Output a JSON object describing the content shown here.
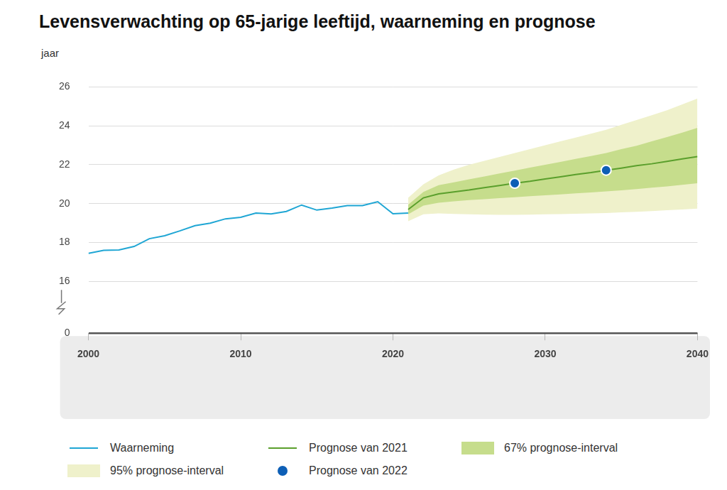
{
  "chart_data": {
    "type": "line",
    "title": "Levensverwachting op 65-jarige leeftijd, waarneming en prognose",
    "ylabel": "jaar",
    "xlim": [
      2000,
      2040
    ],
    "xticks": [
      2000,
      2010,
      2020,
      2030,
      2040
    ],
    "ylim": [
      0,
      26
    ],
    "yticks": [
      0,
      16,
      18,
      20,
      22,
      24,
      26
    ],
    "ybreak": [
      0,
      16
    ],
    "grid": true,
    "series": [
      {
        "name": "Waarneming",
        "type": "line",
        "color": "#1fa6d4",
        "x": [
          2000,
          2001,
          2002,
          2003,
          2004,
          2005,
          2006,
          2007,
          2008,
          2009,
          2010,
          2011,
          2012,
          2013,
          2014,
          2015,
          2016,
          2017,
          2018,
          2019,
          2020,
          2021
        ],
        "values": [
          17.45,
          17.6,
          17.62,
          17.8,
          18.2,
          18.35,
          18.6,
          18.87,
          19.0,
          19.22,
          19.3,
          19.52,
          19.47,
          19.6,
          19.93,
          19.67,
          19.77,
          19.9,
          19.9,
          20.1,
          19.48,
          19.52
        ]
      },
      {
        "name": "Prognose van 2021",
        "type": "line",
        "color": "#5a9f2c",
        "x": [
          2021,
          2022,
          2023,
          2024,
          2025,
          2026,
          2027,
          2028,
          2029,
          2030,
          2031,
          2032,
          2033,
          2034,
          2035,
          2036,
          2037,
          2038,
          2039,
          2040
        ],
        "values": [
          19.7,
          20.3,
          20.5,
          20.6,
          20.7,
          20.82,
          20.93,
          21.05,
          21.15,
          21.27,
          21.38,
          21.5,
          21.6,
          21.72,
          21.83,
          21.95,
          22.05,
          22.17,
          22.3,
          22.42
        ]
      },
      {
        "name": "67% prognose-interval",
        "type": "area",
        "color": "#c6dd8c",
        "x": [
          2021,
          2022,
          2023,
          2024,
          2025,
          2026,
          2027,
          2028,
          2029,
          2030,
          2031,
          2032,
          2033,
          2034,
          2035,
          2036,
          2037,
          2038,
          2039,
          2040
        ],
        "low": [
          19.45,
          19.9,
          20.05,
          20.12,
          20.18,
          20.23,
          20.28,
          20.33,
          20.38,
          20.43,
          20.48,
          20.53,
          20.58,
          20.63,
          20.69,
          20.75,
          20.82,
          20.89,
          20.97,
          21.05
        ],
        "high": [
          19.95,
          20.6,
          20.95,
          21.1,
          21.25,
          21.4,
          21.55,
          21.7,
          21.85,
          22.0,
          22.15,
          22.3,
          22.45,
          22.6,
          22.8,
          22.98,
          23.2,
          23.42,
          23.65,
          23.9
        ]
      },
      {
        "name": "95% prognose-interval",
        "type": "area",
        "color": "#eff1cb",
        "x": [
          2021,
          2022,
          2023,
          2024,
          2025,
          2026,
          2027,
          2028,
          2029,
          2030,
          2031,
          2032,
          2033,
          2034,
          2035,
          2036,
          2037,
          2038,
          2039,
          2040
        ],
        "low": [
          19.1,
          19.45,
          19.5,
          19.47,
          19.45,
          19.44,
          19.43,
          19.43,
          19.44,
          19.45,
          19.46,
          19.48,
          19.5,
          19.52,
          19.55,
          19.58,
          19.62,
          19.66,
          19.7,
          19.75
        ],
        "high": [
          20.3,
          21.0,
          21.45,
          21.75,
          22.0,
          22.2,
          22.4,
          22.6,
          22.8,
          23.0,
          23.2,
          23.4,
          23.6,
          23.8,
          24.05,
          24.3,
          24.55,
          24.8,
          25.1,
          25.4
        ]
      },
      {
        "name": "Prognose van 2022",
        "type": "scatter",
        "color": "#0d5fb6",
        "marker": "circle",
        "x": [
          2028,
          2034
        ],
        "values": [
          21.05,
          21.72
        ]
      }
    ]
  }
}
